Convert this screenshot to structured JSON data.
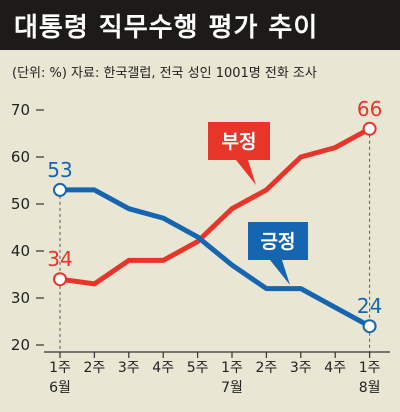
{
  "header": {
    "title": "대통령 직무수행 평가 추이",
    "subtitle": "(단위: %) 자료: 한국갤럽, 전국 성인 1001명 전화 조사"
  },
  "colors": {
    "title_bg": "#1d1b17",
    "background": "#e9e6d3",
    "negative": "#e8352a",
    "positive": "#1565b0"
  },
  "chart_data": {
    "type": "line",
    "x": [
      "1주",
      "2주",
      "3주",
      "4주",
      "5주",
      "1주",
      "2주",
      "3주",
      "4주",
      "1주"
    ],
    "month_labels": [
      {
        "index": 0,
        "label": "6월"
      },
      {
        "index": 5,
        "label": "7월"
      },
      {
        "index": 9,
        "label": "8월"
      }
    ],
    "series": [
      {
        "name": "부정",
        "color": "#e8352a",
        "values": [
          34,
          33,
          38,
          38,
          42,
          49,
          53,
          60,
          62,
          66
        ]
      },
      {
        "name": "긍정",
        "color": "#1565b0",
        "values": [
          53,
          53,
          49,
          47,
          43,
          37,
          32,
          32,
          28,
          24
        ]
      }
    ],
    "endpoint_labels": [
      {
        "series": 0,
        "index": 0,
        "text": "34"
      },
      {
        "series": 0,
        "index": 9,
        "text": "66"
      },
      {
        "series": 1,
        "index": 0,
        "text": "53"
      },
      {
        "series": 1,
        "index": 9,
        "text": "24"
      }
    ],
    "ylim": [
      20,
      70
    ],
    "yticks": [
      20,
      30,
      40,
      50,
      60,
      70
    ],
    "ylabel": "",
    "xlabel": "",
    "grid": false,
    "legend": "callout labels on lines"
  }
}
